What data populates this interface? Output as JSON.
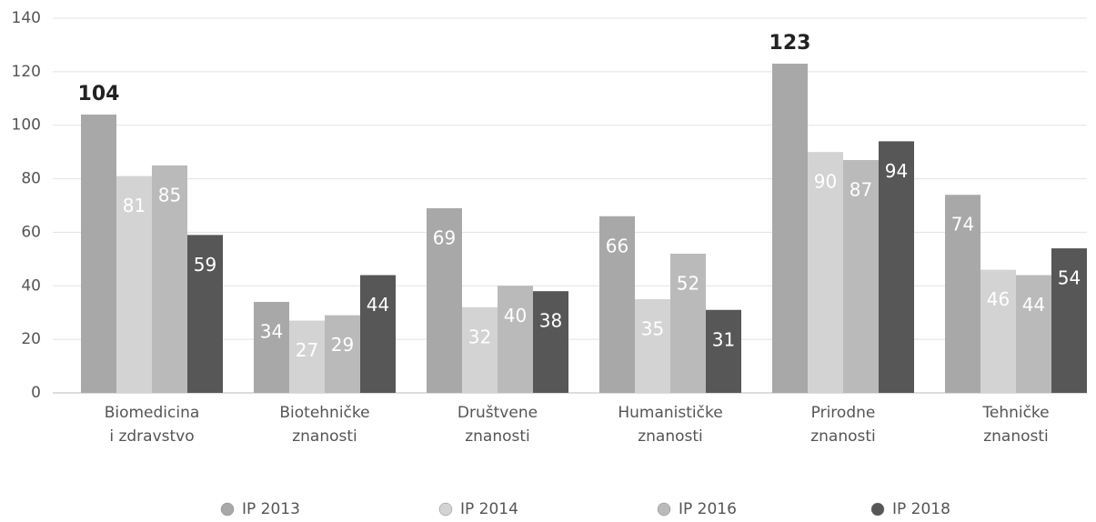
{
  "chart_data": {
    "type": "bar",
    "categories": [
      [
        "Biomedicina",
        "i zdravstvo"
      ],
      [
        "Biotehničke",
        "znanosti"
      ],
      [
        "Društvene",
        "znanosti"
      ],
      [
        "Humanističke",
        "znanosti"
      ],
      [
        "Prirodne",
        "znanosti"
      ],
      [
        "Tehničke",
        "znanosti"
      ]
    ],
    "series": [
      {
        "name": "IP 2013",
        "color": "#a8a8a8",
        "values": [
          104,
          34,
          69,
          66,
          123,
          74
        ]
      },
      {
        "name": "IP 2014",
        "color": "#d3d3d3",
        "values": [
          81,
          27,
          32,
          35,
          90,
          46
        ]
      },
      {
        "name": "IP 2016",
        "color": "#bababa",
        "values": [
          85,
          29,
          40,
          52,
          87,
          44
        ]
      },
      {
        "name": "IP 2018",
        "color": "#575757",
        "values": [
          59,
          44,
          38,
          31,
          94,
          54
        ]
      }
    ],
    "ylim": [
      0,
      140
    ],
    "yticks": [
      0,
      20,
      40,
      60,
      80,
      100,
      120,
      140
    ],
    "grid": true,
    "legend": "bottom"
  }
}
